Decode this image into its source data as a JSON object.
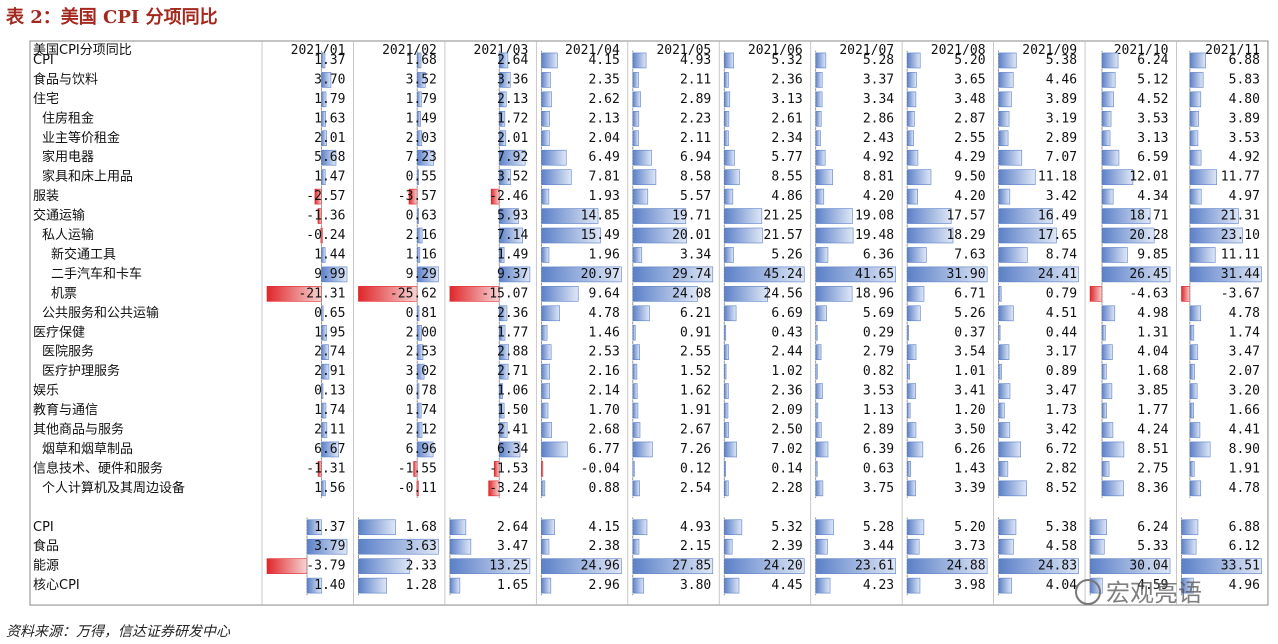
{
  "title": "表 2：美国 CPI 分项同比",
  "table": {
    "header": [
      "美国CPI分项同比",
      "2021/01",
      "2021/02",
      "2021/03",
      "2021/04",
      "2021/05",
      "2021/06",
      "2021/07",
      "2021/08",
      "2021/09",
      "2021/10",
      "2021/11"
    ],
    "sections": [
      {
        "rows": [
          {
            "label": "CPI",
            "values": [
              "1.37",
              "1.68",
              "2.64",
              "4.15",
              "4.93",
              "5.32",
              "5.28",
              "5.20",
              "5.38",
              "6.24",
              "6.88"
            ]
          },
          {
            "label": "食品与饮料",
            "values": [
              "3.70",
              "3.52",
              "3.36",
              "2.35",
              "2.11",
              "2.36",
              "3.37",
              "3.65",
              "4.46",
              "5.12",
              "5.83"
            ]
          },
          {
            "label": "住宅",
            "values": [
              "1.79",
              "1.79",
              "2.13",
              "2.62",
              "2.89",
              "3.13",
              "3.34",
              "3.48",
              "3.89",
              "4.52",
              "4.80"
            ]
          },
          {
            "label": "住房租金",
            "values": [
              "1.63",
              "1.49",
              "1.72",
              "2.13",
              "2.23",
              "2.61",
              "2.86",
              "2.87",
              "3.19",
              "3.53",
              "3.89"
            ]
          },
          {
            "label": "业主等价租金",
            "values": [
              "2.01",
              "2.03",
              "2.01",
              "2.04",
              "2.11",
              "2.34",
              "2.43",
              "2.55",
              "2.89",
              "3.13",
              "3.53"
            ]
          },
          {
            "label": "家用电器",
            "values": [
              "5.68",
              "7.23",
              "7.92",
              "6.49",
              "6.94",
              "5.77",
              "4.92",
              "4.29",
              "7.07",
              "6.59",
              "4.92"
            ]
          },
          {
            "label": "家具和床上用品",
            "values": [
              "1.47",
              "0.55",
              "3.52",
              "7.81",
              "8.58",
              "8.55",
              "8.81",
              "9.50",
              "11.18",
              "12.01",
              "11.77"
            ]
          },
          {
            "label": "服装",
            "values": [
              "-2.57",
              "-3.57",
              "-2.46",
              "1.93",
              "5.57",
              "4.86",
              "4.20",
              "4.20",
              "3.42",
              "4.34",
              "4.97"
            ]
          },
          {
            "label": "交通运输",
            "values": [
              "-1.36",
              "0.63",
              "5.93",
              "14.85",
              "19.71",
              "21.25",
              "19.08",
              "17.57",
              "16.49",
              "18.71",
              "21.31"
            ]
          },
          {
            "label": "私人运输",
            "values": [
              "-0.24",
              "2.16",
              "7.14",
              "15.49",
              "20.01",
              "21.57",
              "19.48",
              "18.29",
              "17.65",
              "20.28",
              "23.10"
            ]
          },
          {
            "label": "新交通工具",
            "values": [
              "1.44",
              "1.16",
              "1.49",
              "1.96",
              "3.34",
              "5.26",
              "6.36",
              "7.63",
              "8.74",
              "9.85",
              "11.11"
            ]
          },
          {
            "label": "二手汽车和卡车",
            "values": [
              "9.99",
              "9.29",
              "9.37",
              "20.97",
              "29.74",
              "45.24",
              "41.65",
              "31.90",
              "24.41",
              "26.45",
              "31.44"
            ]
          },
          {
            "label": "机票",
            "values": [
              "-21.31",
              "-25.62",
              "-15.07",
              "9.64",
              "24.08",
              "24.56",
              "18.96",
              "6.71",
              "0.79",
              "-4.63",
              "-3.67"
            ]
          },
          {
            "label": "公共服务和公共运输",
            "values": [
              "0.65",
              "0.81",
              "2.36",
              "4.78",
              "6.21",
              "6.69",
              "5.69",
              "5.26",
              "4.51",
              "4.98",
              "4.78"
            ]
          },
          {
            "label": "医疗保健",
            "values": [
              "1.95",
              "2.00",
              "1.77",
              "1.46",
              "0.91",
              "0.43",
              "0.29",
              "0.37",
              "0.44",
              "1.31",
              "1.74"
            ]
          },
          {
            "label": "医院服务",
            "values": [
              "2.74",
              "2.53",
              "2.88",
              "2.53",
              "2.55",
              "2.44",
              "2.79",
              "3.54",
              "3.17",
              "4.04",
              "3.47"
            ]
          },
          {
            "label": "医疗护理服务",
            "values": [
              "2.91",
              "3.02",
              "2.71",
              "2.16",
              "1.52",
              "1.02",
              "0.82",
              "1.01",
              "0.89",
              "1.68",
              "2.07"
            ]
          },
          {
            "label": "娱乐",
            "values": [
              "0.13",
              "0.78",
              "1.06",
              "2.14",
              "1.62",
              "2.36",
              "3.53",
              "3.41",
              "3.47",
              "3.85",
              "3.20"
            ]
          },
          {
            "label": "教育与通信",
            "values": [
              "1.74",
              "1.74",
              "1.50",
              "1.70",
              "1.91",
              "2.09",
              "1.13",
              "1.20",
              "1.73",
              "1.77",
              "1.66"
            ]
          },
          {
            "label": "其他商品与服务",
            "values": [
              "2.11",
              "2.12",
              "2.41",
              "2.68",
              "2.67",
              "2.50",
              "2.89",
              "3.50",
              "3.42",
              "4.24",
              "4.41"
            ]
          },
          {
            "label": "烟草和烟草制品",
            "values": [
              "6.67",
              "6.96",
              "6.34",
              "6.77",
              "7.26",
              "7.02",
              "6.39",
              "6.26",
              "6.72",
              "8.51",
              "8.90"
            ]
          },
          {
            "label": "信息技术、硬件和服务",
            "values": [
              "-1.31",
              "-1.55",
              "-1.53",
              "-0.04",
              "0.12",
              "0.14",
              "0.63",
              "1.43",
              "2.82",
              "2.75",
              "1.91"
            ]
          },
          {
            "label": "个人计算机及其周边设备",
            "values": [
              "1.56",
              "-0.11",
              "-3.24",
              "0.88",
              "2.54",
              "2.28",
              "3.75",
              "3.39",
              "8.52",
              "8.36",
              "4.78"
            ]
          }
        ]
      },
      {
        "rows": [
          {
            "label": "CPI",
            "values": [
              "1.37",
              "1.68",
              "2.64",
              "4.15",
              "4.93",
              "5.32",
              "5.28",
              "5.20",
              "5.38",
              "6.24",
              "6.88"
            ]
          },
          {
            "label": "食品",
            "values": [
              "3.79",
              "3.63",
              "3.47",
              "2.38",
              "2.15",
              "2.39",
              "3.44",
              "3.73",
              "4.58",
              "5.33",
              "6.12"
            ]
          },
          {
            "label": "能源",
            "values": [
              "-3.79",
              "2.33",
              "13.25",
              "24.96",
              "27.85",
              "24.20",
              "23.61",
              "24.88",
              "24.83",
              "30.04",
              "33.51"
            ]
          },
          {
            "label": "核心CPI",
            "values": [
              "1.40",
              "1.28",
              "1.65",
              "2.96",
              "3.80",
              "4.45",
              "4.23",
              "3.98",
              "4.04",
              "4.59",
              "4.96"
            ]
          }
        ]
      }
    ]
  },
  "source": "资料来源：万得，信达证券研发中心",
  "watermark": "宏观亮语"
}
